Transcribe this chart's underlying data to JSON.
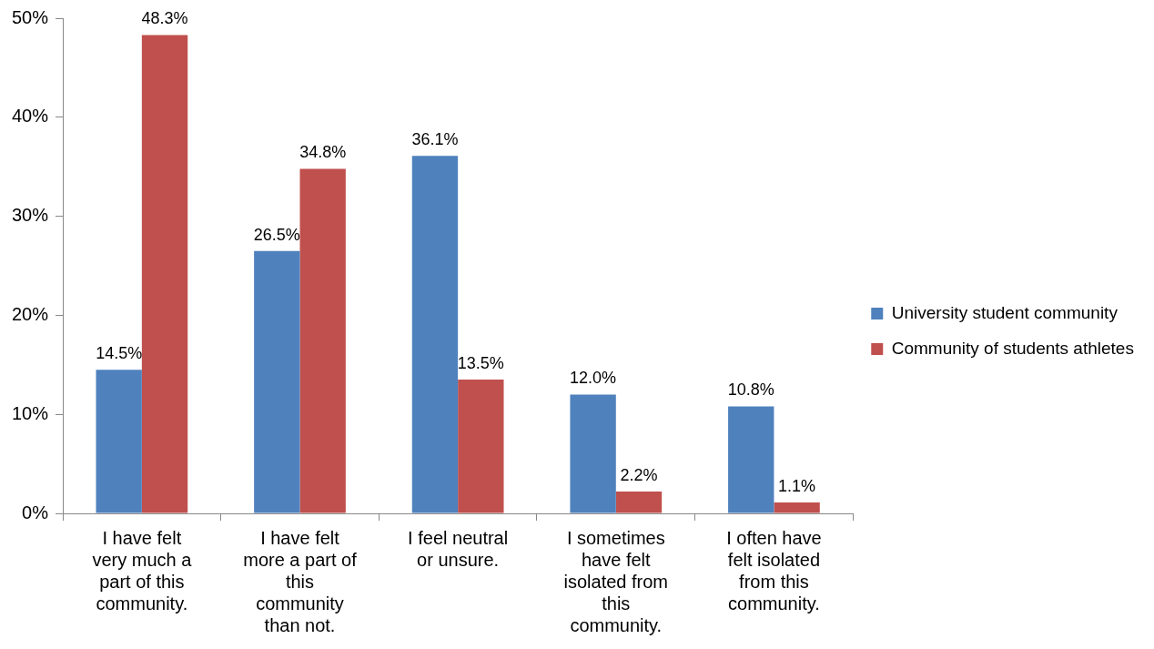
{
  "chart_data": {
    "type": "bar",
    "categories": [
      "I have felt very much a part of this community.",
      "I have felt more a part of this community than not.",
      "I feel neutral or unsure.",
      "I sometimes have felt isolated from this community.",
      "I often have felt isolated from this community."
    ],
    "series": [
      {
        "name": "University student community",
        "color": "#4f81bd",
        "values": [
          14.5,
          26.5,
          36.1,
          12.0,
          10.8
        ],
        "value_labels": [
          "14.5%",
          "26.5%",
          "36.1%",
          "12.0%",
          "10.8%"
        ]
      },
      {
        "name": "Community of students athletes",
        "color": "#c0504d",
        "values": [
          48.3,
          34.8,
          13.5,
          2.2,
          1.1
        ],
        "value_labels": [
          "48.3%",
          "34.8%",
          "13.5%",
          "2.2%",
          "1.1%"
        ]
      }
    ],
    "ylim": [
      0,
      50
    ],
    "yticks": [
      {
        "value": 0,
        "label": "0%"
      },
      {
        "value": 10,
        "label": "10%"
      },
      {
        "value": 20,
        "label": "20%"
      },
      {
        "value": 30,
        "label": "30%"
      },
      {
        "value": 40,
        "label": "40%"
      },
      {
        "value": 50,
        "label": "50%"
      }
    ],
    "grid": false,
    "legend": "right"
  }
}
